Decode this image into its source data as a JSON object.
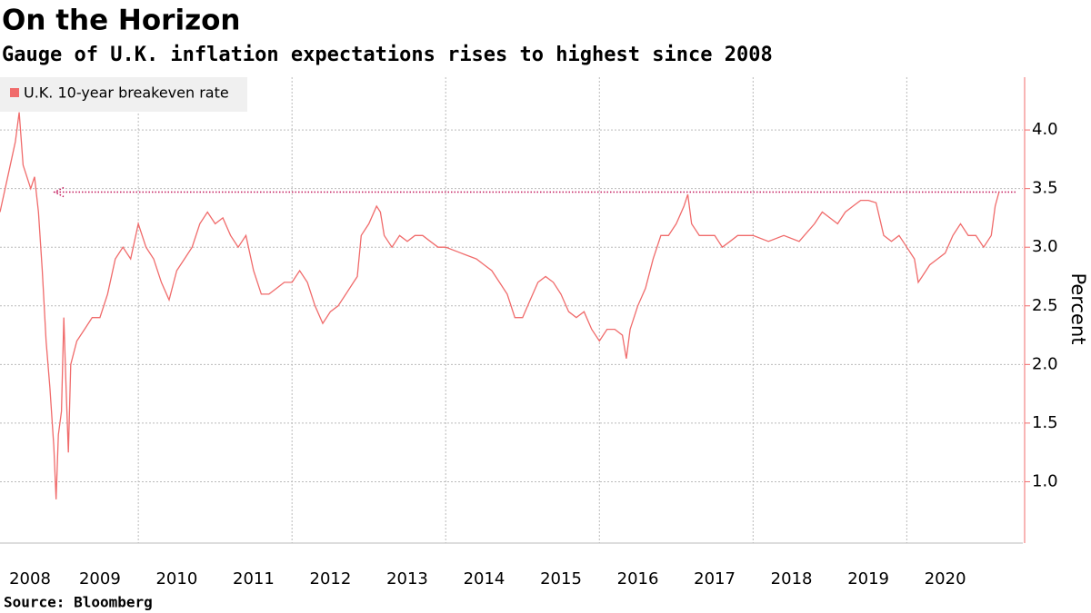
{
  "chart_data": {
    "type": "line",
    "title": "On the Horizon",
    "subtitle": "Gauge of U.K. inflation expectations rises to highest since 2008",
    "source": "Source: Bloomberg",
    "y_label": "Percent",
    "legend": "top-left",
    "grid": true,
    "reference": 3.47,
    "xlim": [
      2008.2,
      2021.51
    ],
    "ylim": [
      0.5,
      4.45
    ],
    "yticks": [
      {
        "value": 1,
        "label": "1.0"
      },
      1.5,
      {
        "value": 2,
        "label": "2.0"
      },
      2.5,
      {
        "value": 3,
        "label": "3.0"
      },
      3.5,
      {
        "value": 4,
        "label": "4.0"
      }
    ],
    "xticks": [
      {
        "value": 2008,
        "label": "2008"
      },
      {
        "value": 2009,
        "label": "2009"
      },
      {
        "value": 2010,
        "label": "2010"
      },
      {
        "value": 2011,
        "label": "2011"
      },
      {
        "value": 2012,
        "label": "2012"
      },
      {
        "value": 2013,
        "label": "2013"
      },
      {
        "value": 2014,
        "label": "2014"
      },
      {
        "value": 2015,
        "label": "2015"
      },
      {
        "value": 2016,
        "label": "2016"
      },
      {
        "value": 2017,
        "label": "2017"
      },
      {
        "value": 2018,
        "label": "2018"
      },
      {
        "value": 2019,
        "label": "2019"
      },
      {
        "value": 2020,
        "label": "2020"
      }
    ],
    "x": [
      2008.2,
      2008.3,
      2008.4,
      2008.45,
      2008.5,
      2008.6,
      2008.65,
      2008.7,
      2008.75,
      2008.8,
      2008.85,
      2008.9,
      2008.93,
      2008.96,
      2009.0,
      2009.03,
      2009.06,
      2009.09,
      2009.12,
      2009.2,
      2009.3,
      2009.4,
      2009.5,
      2009.6,
      2009.7,
      2009.8,
      2009.9,
      2010.0,
      2010.1,
      2010.2,
      2010.3,
      2010.4,
      2010.5,
      2010.6,
      2010.7,
      2010.8,
      2010.9,
      2011.0,
      2011.1,
      2011.2,
      2011.3,
      2011.4,
      2011.5,
      2011.6,
      2011.7,
      2011.8,
      2011.9,
      2012.0,
      2012.1,
      2012.2,
      2012.3,
      2012.4,
      2012.5,
      2012.6,
      2012.7,
      2012.8,
      2012.85,
      2012.9,
      2013.0,
      2013.1,
      2013.15,
      2013.2,
      2013.3,
      2013.4,
      2013.5,
      2013.6,
      2013.7,
      2013.8,
      2013.9,
      2014.0,
      2014.2,
      2014.4,
      2014.5,
      2014.6,
      2014.7,
      2014.8,
      2014.9,
      2015.0,
      2015.1,
      2015.2,
      2015.3,
      2015.4,
      2015.5,
      2015.6,
      2015.7,
      2015.8,
      2015.9,
      2016.0,
      2016.1,
      2016.2,
      2016.3,
      2016.35,
      2016.4,
      2016.5,
      2016.6,
      2016.7,
      2016.8,
      2016.9,
      2017.0,
      2017.1,
      2017.15,
      2017.2,
      2017.3,
      2017.4,
      2017.5,
      2017.6,
      2017.7,
      2017.8,
      2017.9,
      2018.0,
      2018.2,
      2018.4,
      2018.6,
      2018.8,
      2018.9,
      2019.0,
      2019.1,
      2019.2,
      2019.3,
      2019.4,
      2019.5,
      2019.6,
      2019.7,
      2019.8,
      2019.9,
      2020.0,
      2020.1,
      2020.15,
      2020.2,
      2020.3,
      2020.4,
      2020.5,
      2020.6,
      2020.7,
      2020.8,
      2020.9,
      2021.0,
      2021.1,
      2021.15,
      2021.2
    ],
    "series": [
      {
        "name": "U.K. 10-year breakeven rate",
        "color": "#f06b6b",
        "values": [
          3.3,
          3.6,
          3.9,
          4.15,
          3.7,
          3.5,
          3.6,
          3.3,
          2.8,
          2.2,
          1.8,
          1.3,
          0.85,
          1.4,
          1.6,
          2.4,
          1.8,
          1.25,
          2.0,
          2.2,
          2.3,
          2.4,
          2.4,
          2.6,
          2.9,
          3.0,
          2.9,
          3.2,
          3.0,
          2.9,
          2.7,
          2.55,
          2.8,
          2.9,
          3.0,
          3.2,
          3.3,
          3.2,
          3.25,
          3.1,
          3.0,
          3.1,
          2.8,
          2.6,
          2.6,
          2.65,
          2.7,
          2.7,
          2.8,
          2.7,
          2.5,
          2.35,
          2.45,
          2.5,
          2.6,
          2.7,
          2.75,
          3.1,
          3.2,
          3.35,
          3.3,
          3.1,
          3.0,
          3.1,
          3.05,
          3.1,
          3.1,
          3.05,
          3.0,
          3.0,
          2.95,
          2.9,
          2.85,
          2.8,
          2.7,
          2.6,
          2.4,
          2.4,
          2.55,
          2.7,
          2.75,
          2.7,
          2.6,
          2.45,
          2.4,
          2.45,
          2.3,
          2.2,
          2.3,
          2.3,
          2.25,
          2.05,
          2.3,
          2.5,
          2.65,
          2.9,
          3.1,
          3.1,
          3.2,
          3.35,
          3.45,
          3.2,
          3.1,
          3.1,
          3.1,
          3.0,
          3.05,
          3.1,
          3.1,
          3.1,
          3.05,
          3.1,
          3.05,
          3.2,
          3.3,
          3.25,
          3.2,
          3.3,
          3.35,
          3.4,
          3.4,
          3.38,
          3.1,
          3.05,
          3.1,
          3.0,
          2.9,
          2.7,
          2.75,
          2.85,
          2.9,
          2.95,
          3.1,
          3.2,
          3.1,
          3.1,
          3.0,
          3.1,
          3.35,
          3.47
        ]
      }
    ]
  }
}
